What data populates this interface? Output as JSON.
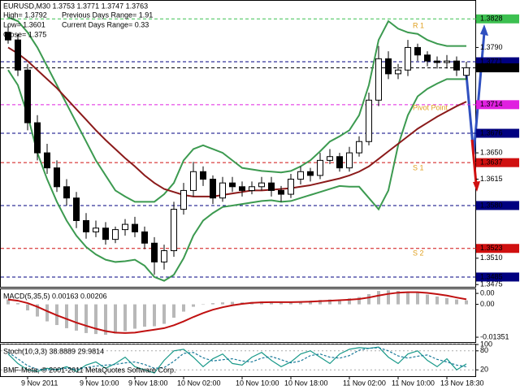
{
  "chart_data": [
    {
      "type": "candlestick",
      "title": "EURUSD,M30 1.3753 1.3771 1.3747 1.3763",
      "annotations": [
        "High= 1.3792",
        "Low= 1.3601",
        "Close= 1.375",
        "Previous Days Range= 1.91",
        "Current Days Range= 0.33"
      ],
      "pivot_labels": [
        "R 1",
        "Pivot Point",
        "S 1",
        "S 2"
      ],
      "pivot_color": "#e0a020",
      "categories": [
        null,
        null,
        "9 Nov 2011",
        null,
        null,
        null,
        null,
        null,
        "9 Nov 10:00",
        null,
        null,
        null,
        null,
        "9 Nov 18:00",
        null,
        null,
        null,
        null,
        "10 Nov 02:00",
        null,
        null,
        null,
        null,
        null,
        "10 Nov 10:00",
        null,
        null,
        null,
        null,
        "10 Nov 18:00",
        null,
        null,
        null,
        null,
        null,
        "11 Nov 02:00",
        null,
        null,
        null,
        null,
        "11 Nov 10:00",
        null,
        null,
        null,
        null,
        "13 Nov 18:30",
        null,
        null
      ],
      "open": [
        1.381,
        1.38,
        1.376,
        1.369,
        1.365,
        1.363,
        1.3605,
        1.359,
        1.356,
        1.3545,
        1.355,
        1.3535,
        1.3548,
        1.3555,
        1.3545,
        1.353,
        1.3505,
        1.352,
        1.3575,
        1.36,
        1.3625,
        1.3615,
        1.359,
        1.361,
        1.3605,
        1.36,
        1.3605,
        1.361,
        1.36,
        1.3595,
        1.3615,
        1.3625,
        1.362,
        1.364,
        1.3645,
        1.363,
        1.365,
        1.3665,
        1.372,
        1.3775,
        1.3755,
        1.376,
        1.379,
        1.378,
        1.3772,
        1.377,
        1.3772,
        1.3753
      ],
      "high": [
        1.382,
        1.3808,
        1.3768,
        1.37,
        1.3662,
        1.364,
        1.3615,
        1.3598,
        1.357,
        1.356,
        1.3558,
        1.3552,
        1.3562,
        1.3565,
        1.3552,
        1.3538,
        1.3528,
        1.3585,
        1.361,
        1.3638,
        1.3632,
        1.362,
        1.3618,
        1.3618,
        1.3612,
        1.3612,
        1.3618,
        1.3618,
        1.3606,
        1.3622,
        1.3632,
        1.363,
        1.365,
        1.3655,
        1.365,
        1.3658,
        1.3672,
        1.373,
        1.3792,
        1.3785,
        1.3768,
        1.38,
        1.3795,
        1.3785,
        1.3778,
        1.378,
        1.3778,
        1.3771
      ],
      "low": [
        1.3795,
        1.3752,
        1.368,
        1.364,
        1.3622,
        1.3598,
        1.358,
        1.355,
        1.3536,
        1.3538,
        1.3528,
        1.353,
        1.354,
        1.3538,
        1.3522,
        1.3488,
        1.3495,
        1.3512,
        1.3568,
        1.3592,
        1.3606,
        1.3582,
        1.3585,
        1.3598,
        1.3592,
        1.3595,
        1.36,
        1.3592,
        1.3585,
        1.359,
        1.3608,
        1.3612,
        1.3615,
        1.3635,
        1.3625,
        1.3625,
        1.3645,
        1.366,
        1.3712,
        1.3748,
        1.3748,
        1.3752,
        1.3772,
        1.3765,
        1.3762,
        1.3762,
        1.3752,
        1.3747
      ],
      "close": [
        1.38,
        1.376,
        1.369,
        1.365,
        1.363,
        1.3605,
        1.359,
        1.356,
        1.3545,
        1.355,
        1.3535,
        1.3548,
        1.3555,
        1.3545,
        1.353,
        1.3505,
        1.352,
        1.3575,
        1.36,
        1.3625,
        1.3615,
        1.359,
        1.361,
        1.3605,
        1.36,
        1.3605,
        1.361,
        1.36,
        1.3595,
        1.3615,
        1.3625,
        1.362,
        1.364,
        1.3645,
        1.363,
        1.365,
        1.3665,
        1.372,
        1.3775,
        1.3755,
        1.376,
        1.379,
        1.378,
        1.3772,
        1.377,
        1.3772,
        1.376,
        1.3763
      ],
      "up_color": "#ffffff",
      "down_color": "#000000",
      "overlays": [
        {
          "color": "#3c9a50",
          "values": [
            1.383,
            1.3825,
            1.381,
            1.379,
            1.3765,
            1.374,
            1.3715,
            1.369,
            1.3665,
            1.364,
            1.362,
            1.36,
            1.3592,
            1.3585,
            1.3585,
            1.3585,
            1.3595,
            1.361,
            1.364,
            1.3655,
            1.366,
            1.3655,
            1.365,
            1.364,
            1.363,
            1.3628,
            1.3626,
            1.3625,
            1.3624,
            1.3626,
            1.3632,
            1.364,
            1.3652,
            1.3665,
            1.3672,
            1.368,
            1.37,
            1.374,
            1.38,
            1.3825,
            1.3815,
            1.381,
            1.3808,
            1.38,
            1.3795,
            1.3792,
            1.3792,
            1.3792
          ]
        },
        {
          "color": "#3c9a50",
          "values": [
            1.376,
            1.374,
            1.37,
            1.365,
            1.3615,
            1.3585,
            1.356,
            1.354,
            1.3525,
            1.3515,
            1.3508,
            1.3505,
            1.3506,
            1.3508,
            1.35,
            1.3485,
            1.348,
            1.3488,
            1.351,
            1.354,
            1.356,
            1.357,
            1.3578,
            1.358,
            1.3582,
            1.3584,
            1.3586,
            1.3587,
            1.3585,
            1.3586,
            1.359,
            1.3594,
            1.3598,
            1.3602,
            1.3606,
            1.3605,
            1.3605,
            1.359,
            1.3575,
            1.36,
            1.366,
            1.37,
            1.3725,
            1.3735,
            1.3742,
            1.3748,
            1.3748,
            1.3748
          ]
        },
        {
          "color": "#8b1a1a",
          "values": [
            1.379,
            1.3782,
            1.3772,
            1.376,
            1.3748,
            1.3736,
            1.3722,
            1.3708,
            1.3694,
            1.368,
            1.3667,
            1.3655,
            1.3643,
            1.3632,
            1.362,
            1.361,
            1.3602,
            1.3598,
            1.3594,
            1.3592,
            1.3592,
            1.3592,
            1.3594,
            1.3596,
            1.3598,
            1.36,
            1.36,
            1.3601,
            1.3602,
            1.3603,
            1.3605,
            1.3607,
            1.361,
            1.3613,
            1.3616,
            1.362,
            1.3625,
            1.3632,
            1.3642,
            1.3652,
            1.3662,
            1.3672,
            1.3682,
            1.369,
            1.3698,
            1.3705,
            1.3712,
            1.3718
          ]
        }
      ],
      "levels": [
        {
          "value": 1.3828,
          "label": "1.3828",
          "color": "#3cc050",
          "text_color": "#000000"
        },
        {
          "value": 1.3771,
          "label": "1.3771",
          "color": "#000080",
          "text_color": "#ffffff"
        },
        {
          "value": 1.3763,
          "label": "1.3763",
          "color": "#000000",
          "text_color": "#ffffff"
        },
        {
          "value": 1.3714,
          "label": "1.3714",
          "color": "#e020e0",
          "text_color": "#ffffff"
        },
        {
          "value": 1.3676,
          "label": "1.3676",
          "color": "#000080",
          "text_color": "#ffffff"
        },
        {
          "value": 1.3637,
          "label": "1.3637",
          "color": "#d01010",
          "text_color": "#ffffff"
        },
        {
          "value": 1.358,
          "label": "1.3580",
          "color": "#000080",
          "text_color": "#ffffff"
        },
        {
          "value": 1.3523,
          "label": "1.3523",
          "color": "#d01010",
          "text_color": "#ffffff"
        },
        {
          "value": 1.3485,
          "label": "1.3485",
          "color": "#000080",
          "text_color": "#ffffff"
        }
      ],
      "ylim": [
        1.3472,
        1.3852
      ],
      "yticks": [
        {
          "value": 1.379,
          "label": "1.3790"
        },
        {
          "value": 1.365,
          "label": "1.3650"
        },
        1.3615,
        {
          "value": 1.351,
          "label": "1.3510"
        },
        1.3475
      ]
    },
    {
      "type": "bar",
      "title": "MACD(5,35,5) 0.00163 0.00206",
      "color": "#b8b8b8",
      "values": [
        0.002,
        0.0005,
        -0.0025,
        -0.005,
        -0.007,
        -0.0085,
        -0.0098,
        -0.0108,
        -0.0118,
        -0.0122,
        -0.0125,
        -0.012,
        -0.011,
        -0.01,
        -0.0092,
        -0.009,
        -0.008,
        -0.0055,
        -0.003,
        -0.001,
        0.0,
        0.0005,
        0.0008,
        0.001,
        0.0008,
        0.001,
        0.0012,
        0.001,
        0.0008,
        0.001,
        0.0012,
        0.0015,
        0.0018,
        0.002,
        0.002,
        0.0025,
        0.003,
        0.0042,
        0.0055,
        0.0058,
        0.0055,
        0.0052,
        0.0048,
        0.004,
        0.0032,
        0.0026,
        0.002,
        0.00163
      ],
      "series": [
        {
          "color": "#c01010",
          "values": [
            0.002,
            0.0015,
            0.0005,
            -0.001,
            -0.0028,
            -0.0045,
            -0.006,
            -0.0075,
            -0.0088,
            -0.01,
            -0.011,
            -0.0116,
            -0.0118,
            -0.0116,
            -0.011,
            -0.0104,
            -0.0098,
            -0.0086,
            -0.007,
            -0.0052,
            -0.0036,
            -0.0022,
            -0.0012,
            -0.0004,
            0.0002,
            0.0006,
            0.0008,
            0.0009,
            0.0009,
            0.0009,
            0.001,
            0.0011,
            0.0013,
            0.0015,
            0.0017,
            0.0019,
            0.0022,
            0.0028,
            0.0036,
            0.0043,
            0.0048,
            0.005,
            0.005,
            0.0047,
            0.0042,
            0.0036,
            0.0028,
            0.00206
          ]
        }
      ],
      "ylim": [
        -0.0155,
        0.0062
      ],
      "yticks": [
        {
          "value": 0.0045,
          "label": "0.00"
        },
        {
          "value": 0,
          "label": "0.00"
        },
        -0.01351
      ]
    },
    {
      "type": "line",
      "title": "Stoch(10,3,3) 38.8889 29.9814",
      "series": [
        {
          "color": "#1a9a8a",
          "dashed": false,
          "values": [
            70,
            40,
            20,
            15,
            25,
            20,
            30,
            15,
            35,
            45,
            25,
            40,
            60,
            30,
            20,
            10,
            50,
            80,
            85,
            60,
            30,
            55,
            70,
            40,
            35,
            60,
            75,
            50,
            30,
            45,
            70,
            80,
            60,
            40,
            70,
            85,
            90,
            88,
            92,
            60,
            40,
            70,
            80,
            50,
            30,
            55,
            20,
            38.8889
          ]
        },
        {
          "color": "#1a7a9a",
          "dashed": true,
          "values": [
            75,
            55,
            33,
            22,
            20,
            22,
            25,
            22,
            27,
            32,
            35,
            37,
            42,
            45,
            37,
            25,
            27,
            47,
            72,
            75,
            58,
            48,
            52,
            55,
            48,
            45,
            57,
            62,
            52,
            42,
            48,
            65,
            70,
            60,
            57,
            65,
            82,
            88,
            90,
            80,
            64,
            57,
            63,
            67,
            53,
            45,
            35,
            29.9814
          ]
        }
      ],
      "footer": "BMF-Meta, © 2001-2011 MetaQuotes Software Corp.",
      "ylim": [
        0,
        100
      ],
      "yticks": [
        100,
        80,
        20
      ]
    }
  ]
}
